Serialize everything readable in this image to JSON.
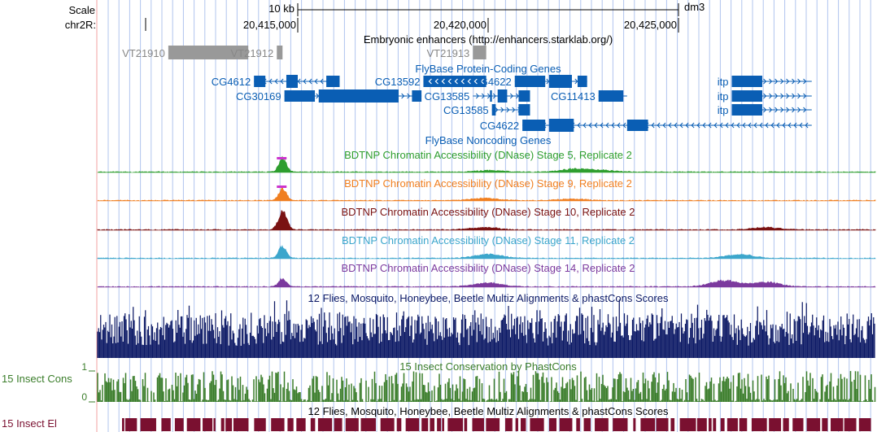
{
  "header": {
    "scale_label": "Scale",
    "scale_value": "10 kb",
    "assembly": "dm3",
    "chrom_label": "chr2R:",
    "ticks": [
      {
        "label": "20,415,000",
        "pos": 20415000
      },
      {
        "label": "20,420,000",
        "pos": 20420000
      },
      {
        "label": "20,425,000",
        "pos": 20425000
      }
    ]
  },
  "colors": {
    "gene": "#0A5EB4",
    "enhancer": "#999999",
    "stage5": "#2E9E2E",
    "stage9": "#F07F20",
    "stage10": "#7A1212",
    "stage11": "#3CA6CC",
    "stage14": "#7C3A9E",
    "multiz": "#0D1A66",
    "cons": "#3A7D2A",
    "elements": "#7A1030",
    "peak_top": "#CC33CC",
    "gridline": "#B0C4EE",
    "boundary": "#F2A0A0"
  },
  "tracks": {
    "enhancers": {
      "title": "Embryonic enhancers (http://enhancers.starklab.org/)",
      "items": [
        {
          "name": "VT21910",
          "start": 20411600,
          "end": 20413700
        },
        {
          "name": "VT21912",
          "start": 20414450,
          "end": 20414600
        },
        {
          "name": "VT21913",
          "start": 20419600,
          "end": 20419950
        }
      ]
    },
    "protein_coding": {
      "title": "FlyBase Protein-Coding Genes",
      "genes": [
        {
          "name": "CG4612",
          "label_side": "left",
          "row": 0,
          "start": 20413850,
          "end": 20416100,
          "strand": "-",
          "exons": [
            [
              20413850,
              20414150
            ],
            [
              20414700,
              20415000
            ],
            [
              20415750,
              20416100
            ]
          ]
        },
        {
          "name": "CG13592",
          "label_side": "left",
          "row": 0,
          "start": 20418300,
          "end": 20419950,
          "strand": "-",
          "exons": [
            [
              20418300,
              20419950
            ]
          ]
        },
        {
          "name": "CG4622",
          "label_side": "left",
          "row": 0,
          "start": 20420700,
          "end": 20422600,
          "strand": "+",
          "exons": [
            [
              20420700,
              20421500
            ],
            [
              20421600,
              20422200
            ],
            [
              20422350,
              20422600
            ]
          ]
        },
        {
          "name": "itp",
          "label_side": "left",
          "row": 0,
          "start": 20426400,
          "end": 20428500,
          "strand": "+",
          "exons": [
            [
              20426400,
              20427200
            ]
          ]
        },
        {
          "name": "CG30169",
          "label_side": "left",
          "row": 1,
          "start": 20414650,
          "end": 20418250,
          "strand": "+",
          "exons": [
            [
              20414650,
              20415450
            ],
            [
              20415550,
              20417650
            ],
            [
              20418000,
              20418250
            ]
          ]
        },
        {
          "name": "CG13585",
          "label_side": "left",
          "row": 1,
          "start": 20419600,
          "end": 20421100,
          "strand": "+",
          "exons": [
            [
              20420050,
              20420100
            ],
            [
              20420250,
              20420500
            ],
            [
              20420800,
              20421100
            ]
          ]
        },
        {
          "name": "CG11413",
          "label_side": "left",
          "row": 1,
          "start": 20422900,
          "end": 20423650,
          "strand": "+",
          "exons": [
            [
              20422900,
              20423550
            ]
          ]
        },
        {
          "name": "itp",
          "label_side": "left",
          "row": 1,
          "start": 20426400,
          "end": 20428500,
          "strand": "+",
          "exons": [
            [
              20426400,
              20427200
            ]
          ]
        },
        {
          "name": "CG13585",
          "label_side": "left",
          "row": 2,
          "start": 20420100,
          "end": 20421100,
          "strand": "+",
          "exons": [
            [
              20420100,
              20420200
            ],
            [
              20420800,
              20421100
            ]
          ]
        },
        {
          "name": "itp",
          "label_side": "left",
          "row": 2,
          "start": 20426400,
          "end": 20428500,
          "strand": "+",
          "exons": [
            [
              20426400,
              20427200
            ]
          ]
        },
        {
          "name": "CG4622",
          "label_side": "left",
          "row": 3,
          "start": 20420900,
          "end": 20428500,
          "strand": "-",
          "exons": [
            [
              20420900,
              20421500
            ],
            [
              20421600,
              20422250
            ],
            [
              20423650,
              20424200
            ]
          ]
        }
      ]
    },
    "noncoding": {
      "title": "FlyBase Noncoding Genes"
    },
    "dnase": [
      {
        "key": "stage5",
        "title": "BDTNP Chromatin Accessibility (DNase) Stage 5, Replicate 2",
        "peaks": [
          [
            20414600,
            18
          ],
          [
            20420100,
            2
          ],
          [
            20422300,
            4
          ],
          [
            20423000,
            2
          ]
        ]
      },
      {
        "key": "stage9",
        "title": "BDTNP Chromatin Accessibility (DNase) Stage 9, Replicate 2",
        "peaks": [
          [
            20414600,
            16
          ],
          [
            20419900,
            3
          ],
          [
            20422200,
            2
          ]
        ]
      },
      {
        "key": "stage10",
        "title": "BDTNP Chromatin Accessibility (DNase) Stage 10, Replicate 2",
        "peaks": [
          [
            20414550,
            12
          ],
          [
            20414650,
            14
          ],
          [
            20419900,
            3
          ],
          [
            20427300,
            3
          ]
        ]
      },
      {
        "key": "stage11",
        "title": "BDTNP Chromatin Accessibility (DNase) Stage 11, Replicate 2",
        "peaks": [
          [
            20414600,
            16
          ],
          [
            20420000,
            5
          ],
          [
            20426600,
            5
          ]
        ]
      },
      {
        "key": "stage14",
        "title": "BDTNP Chromatin Accessibility (DNase) Stage 14, Replicate 2",
        "peaks": [
          [
            20414600,
            10
          ],
          [
            20420000,
            5
          ],
          [
            20426200,
            8
          ],
          [
            20427300,
            6
          ]
        ]
      }
    ],
    "multiz": {
      "title": "12 Flies, Mosquito, Honeybee, Beetle Multiz Alignments & phastCons Scores"
    },
    "phastcons": {
      "title": "15 Insect Conservation by PhastCons",
      "side_label": "15 Insect Cons",
      "y_max": "1",
      "y_min": "0"
    },
    "elements": {
      "title": "12 Flies, Mosquito, Honeybee, Beetle Multiz Alignments & phastCons Scores",
      "side_label": "15 Insect El"
    }
  }
}
